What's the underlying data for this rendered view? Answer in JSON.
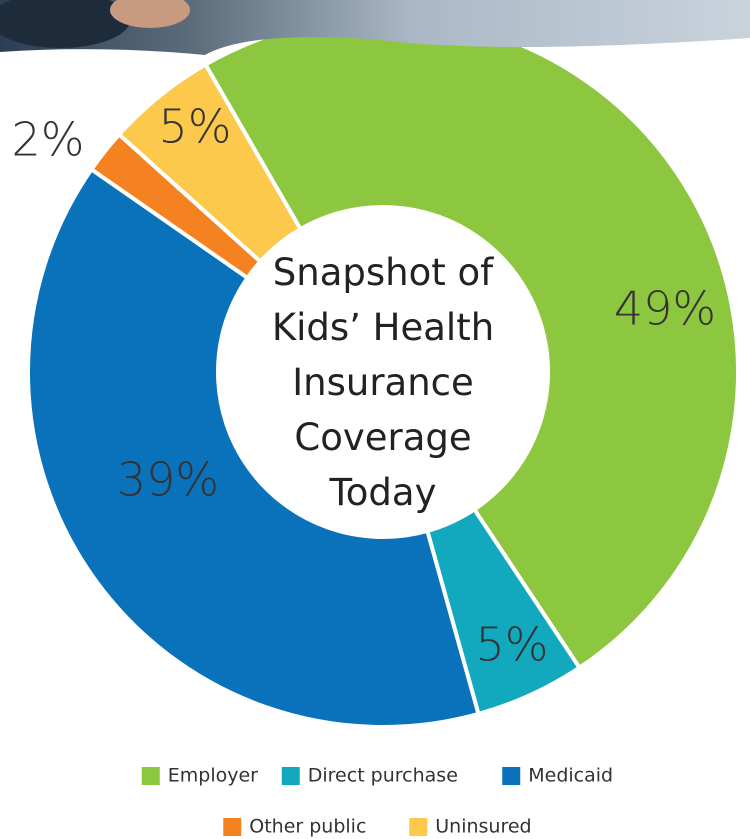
{
  "chart_data": {
    "type": "donut",
    "title": "Snapshot of Kids’ Health Insurance Coverage Today",
    "categories": [
      "Employer",
      "Direct purchase",
      "Medicaid",
      "Other public",
      "Uninsured"
    ],
    "values": [
      49,
      5,
      39,
      2,
      5
    ],
    "value_labels": [
      "49%",
      "5%",
      "39%",
      "2%",
      "5%"
    ],
    "colors": [
      "#8dc63f",
      "#12a8be",
      "#0a72ba",
      "#f58220",
      "#fdc94d"
    ]
  }
}
